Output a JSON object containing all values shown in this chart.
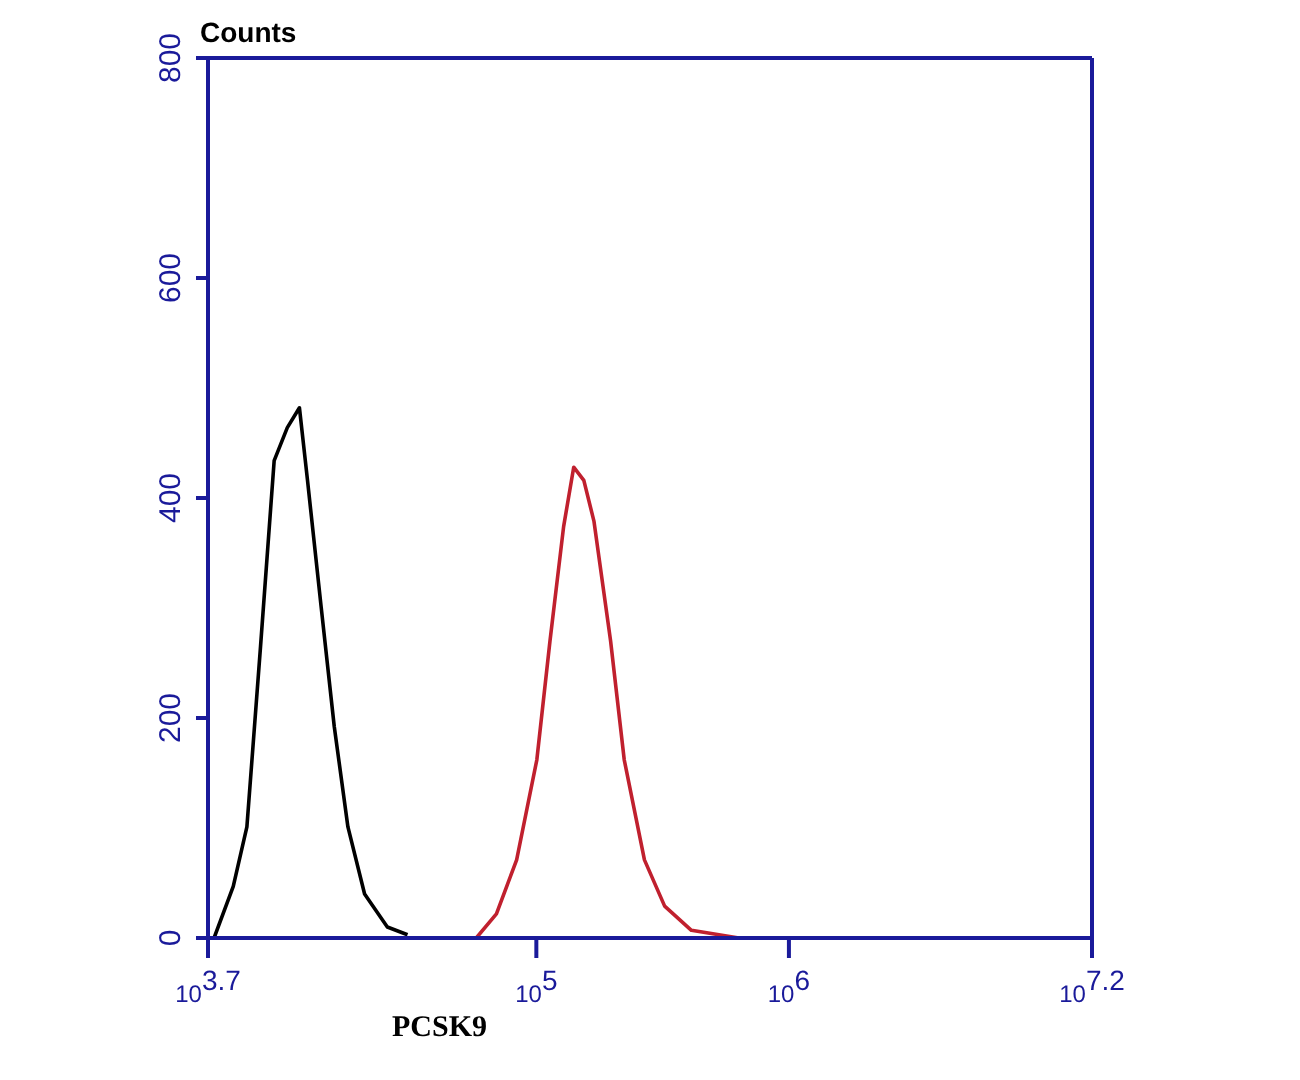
{
  "chart_data": {
    "type": "line",
    "xlabel": "PCSK9",
    "ylabel": "Counts",
    "log": "x",
    "xlim": [
      5012,
      15848932
    ],
    "xticks": [
      {
        "value": 5012,
        "label": "10$^{3.7}$"
      },
      {
        "value": 100000,
        "label": "10$^{5}$"
      },
      {
        "value": 1000000,
        "label": "10$^{6}$"
      },
      {
        "value": 15848932,
        "label": "10$^{7.2}$"
      }
    ],
    "ylim": [
      0,
      800
    ],
    "yticks": [
      0,
      200,
      400,
      600,
      800
    ],
    "marker": "none",
    "line_style": "solid",
    "series": [
      {
        "color": "#000000",
        "x": [
          5297,
          6310,
          7145,
          8091,
          9162,
          10328,
          11535,
          12417,
          14060,
          15849,
          17947,
          20893,
          25704,
          30903
        ],
        "values": [
          0,
          47,
          101,
          265,
          434,
          464,
          482,
          416,
          301,
          192,
          101,
          40,
          10,
          3
        ]
      },
      {
        "color": "#c0202e",
        "x": [
          6730,
          57810,
          69500,
          83560,
          100460,
          113240,
          128230,
          140600,
          154170,
          169040,
          196790,
          222840,
          267920,
          322100,
          411100,
          633900
        ],
        "values": [
          0,
          0,
          22,
          71,
          162,
          270,
          374,
          428,
          416,
          379,
          270,
          162,
          71,
          29,
          7,
          0
        ]
      }
    ]
  }
}
